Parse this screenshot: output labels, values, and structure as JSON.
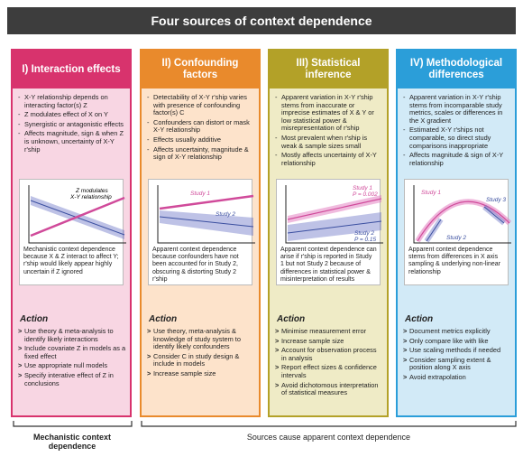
{
  "title": "Four sources of context dependence",
  "columns": [
    {
      "title": "I) Interaction effects",
      "bullets": [
        "X-Y relationship depends on interacting factor(s) Z",
        "Z modulates effect of X on Y",
        "Synergistic or antagonistic effects",
        "Affects magnitude, sign & when Z is unknown, uncertainty of X-Y r'ship"
      ],
      "diagram_labels": [
        "Z modulates",
        "X-Y relationship"
      ],
      "caption": "Mechanistic context dependence because X & Z interact to affect Y; r'ship would likely appear highly uncertain if Z ignored",
      "action_title": "Action",
      "actions": [
        "Use theory & meta-analysis to identify likely interactions",
        "Include covariate Z in models as a fixed effect",
        "Use appropriate null models",
        "Specify interative effect of Z in conclusions"
      ]
    },
    {
      "title": "II) Confounding factors",
      "bullets": [
        "Detectability of X-Y r'ship varies with presence of confounding factor(s) C",
        "Confounders can distort or mask X-Y relationship",
        "Effects usually additive",
        "Affects uncertainty, magnitude & sign of X-Y relationship"
      ],
      "diagram_labels": [
        "Study 1",
        "Study 2"
      ],
      "caption": "Apparent context dependence because confounders have not been accounted for in Study 2, obscuring & distorting Study 2 r'ship",
      "action_title": "Action",
      "actions": [
        "Use theory, meta-analysis & knowledge of study system to identify likely confounders",
        "Consider C in study design & include in models",
        "Increase sample size"
      ]
    },
    {
      "title": "III) Statistical inference",
      "bullets": [
        "Apparent variation in X-Y r'ship stems from inaccurate or imprecise estimates of X & Y or low statistical power & misrepresentation of r'ship",
        "Most prevalent when r'ship is weak & sample sizes small",
        "Mostly affects uncertainty of X-Y relationship"
      ],
      "diagram_labels": [
        "Study 1",
        "P = 0.002",
        "Study 2",
        "P = 0.15"
      ],
      "caption": "Apparent context dependence can arise if r'ship is reported in Study 1 but not Study 2 because of differences in statistical power & misinterpretation of results",
      "action_title": "Action",
      "actions": [
        "Minimise measurement error",
        "Increase sample size",
        "Account for observation process in analysis",
        "Report effect sizes & confidence intervals",
        "Avoid dichotomous interpretation of statistical measures"
      ]
    },
    {
      "title": "IV) Methodological differences",
      "bullets": [
        "Apparent variation in X-Y r'ship stems from incomparable study metrics, scales or differences in the X gradient",
        "Estimated X-Y r'ships not comparable, so direct study comparisons inappropriate",
        "Affects magnitude & sign of X-Y relationship"
      ],
      "diagram_labels": [
        "Study 1",
        "Study 3",
        "Study 2"
      ],
      "caption": "Apparent context dependence stems from differences in X axis sampling & underlying non-linear relationship",
      "action_title": "Action",
      "actions": [
        "Document metrics explicitly",
        "Only compare like with like",
        "Use scaling methods if needed",
        "Consider sampling extent & position along X axis",
        "Avoid extrapolation"
      ]
    }
  ],
  "footer": {
    "left": "Mechanistic context dependence",
    "right": "Sources cause apparent context dependence"
  }
}
